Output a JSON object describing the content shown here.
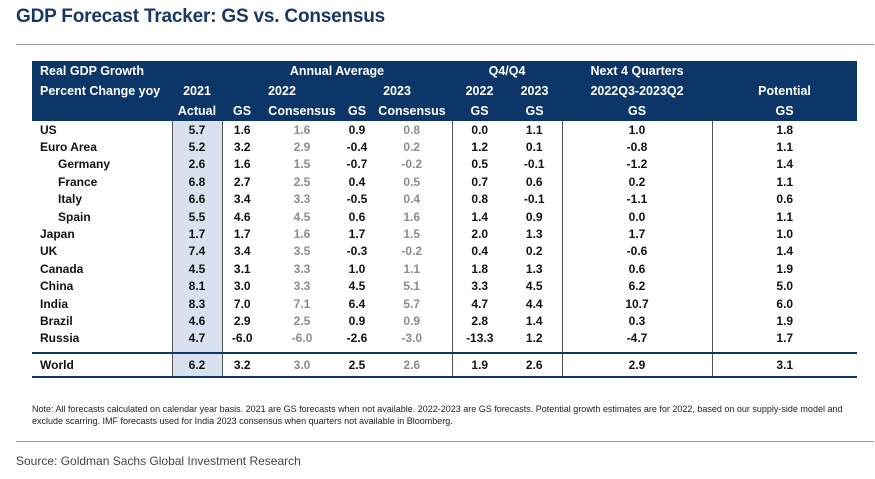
{
  "title": "GDP Forecast Tracker: GS vs. Consensus",
  "header": {
    "real_gdp": "Real GDP Growth",
    "pct_change": "Percent Change yoy",
    "annual_avg": "Annual Average",
    "q4q4": "Q4/Q4",
    "next4q": "Next 4 Quarters",
    "y2021": "2021",
    "y2022": "2022",
    "y2023": "2023",
    "q_2022": "2022",
    "q_2023": "2023",
    "range": "2022Q3-2023Q2",
    "potential": "Potential",
    "actual": "Actual",
    "gs": "GS",
    "consensus": "Consensus"
  },
  "rows": [
    {
      "country": "US",
      "a21": "5.7",
      "gs22": "1.6",
      "con22": "1.6",
      "gs23": "0.9",
      "con23": "0.8",
      "q22": "0.0",
      "q23": "1.1",
      "n4q": "1.0",
      "pot": "1.8"
    },
    {
      "country": "Euro Area",
      "a21": "5.2",
      "gs22": "3.2",
      "con22": "2.9",
      "gs23": "-0.4",
      "con23": "0.2",
      "q22": "1.2",
      "q23": "0.1",
      "n4q": "-0.8",
      "pot": "1.1"
    },
    {
      "country": "Germany",
      "a21": "2.6",
      "gs22": "1.6",
      "con22": "1.5",
      "gs23": "-0.7",
      "con23": "-0.2",
      "q22": "0.5",
      "q23": "-0.1",
      "n4q": "-1.2",
      "pot": "1.4"
    },
    {
      "country": "France",
      "a21": "6.8",
      "gs22": "2.7",
      "con22": "2.5",
      "gs23": "0.4",
      "con23": "0.5",
      "q22": "0.7",
      "q23": "0.6",
      "n4q": "0.2",
      "pot": "1.1"
    },
    {
      "country": "Italy",
      "a21": "6.6",
      "gs22": "3.4",
      "con22": "3.3",
      "gs23": "-0.5",
      "con23": "0.4",
      "q22": "0.8",
      "q23": "-0.1",
      "n4q": "-1.1",
      "pot": "0.6"
    },
    {
      "country": "Spain",
      "a21": "5.5",
      "gs22": "4.6",
      "con22": "4.5",
      "gs23": "0.6",
      "con23": "1.6",
      "q22": "1.4",
      "q23": "0.9",
      "n4q": "0.0",
      "pot": "1.1"
    },
    {
      "country": "Japan",
      "a21": "1.7",
      "gs22": "1.7",
      "con22": "1.6",
      "gs23": "1.7",
      "con23": "1.5",
      "q22": "2.0",
      "q23": "1.3",
      "n4q": "1.7",
      "pot": "1.0"
    },
    {
      "country": "UK",
      "a21": "7.4",
      "gs22": "3.4",
      "con22": "3.5",
      "gs23": "-0.3",
      "con23": "-0.2",
      "q22": "0.4",
      "q23": "0.2",
      "n4q": "-0.6",
      "pot": "1.4"
    },
    {
      "country": "Canada",
      "a21": "4.5",
      "gs22": "3.1",
      "con22": "3.3",
      "gs23": "1.0",
      "con23": "1.1",
      "q22": "1.8",
      "q23": "1.3",
      "n4q": "0.6",
      "pot": "1.9"
    },
    {
      "country": "China",
      "a21": "8.1",
      "gs22": "3.0",
      "con22": "3.3",
      "gs23": "4.5",
      "con23": "5.1",
      "q22": "3.3",
      "q23": "4.5",
      "n4q": "6.2",
      "pot": "5.0"
    },
    {
      "country": "India",
      "a21": "8.3",
      "gs22": "7.0",
      "con22": "7.1",
      "gs23": "6.4",
      "con23": "5.7",
      "q22": "4.7",
      "q23": "4.4",
      "n4q": "10.7",
      "pot": "6.0"
    },
    {
      "country": "Brazil",
      "a21": "4.6",
      "gs22": "2.9",
      "con22": "2.5",
      "gs23": "0.9",
      "con23": "0.9",
      "q22": "2.8",
      "q23": "1.4",
      "n4q": "0.3",
      "pot": "1.9"
    },
    {
      "country": "Russia",
      "a21": "4.7",
      "gs22": "-6.0",
      "con22": "-6.0",
      "gs23": "-2.6",
      "con23": "-3.0",
      "q22": "-13.3",
      "q23": "1.2",
      "n4q": "-4.7",
      "pot": "1.7"
    }
  ],
  "world": {
    "country": "World",
    "a21": "6.2",
    "gs22": "3.2",
    "con22": "3.0",
    "gs23": "2.5",
    "con23": "2.6",
    "q22": "1.9",
    "q23": "2.6",
    "n4q": "2.9",
    "pot": "3.1"
  },
  "note": "Note: All forecasts calculated on calendar year basis. 2021 are GS forecasts when not available. 2022-2023 are GS forecasts. Potential growth estimates are for 2022, based on our supply-side model and exclude scarring. IMF forecasts used for India 2023 consensus when quarters not available in Bloomberg.",
  "source": "Source: Goldman Sachs Global Investment Research",
  "colors": {
    "header_bg": "#0c3568",
    "title": "#1b3665",
    "actual_bg": "#d9e1ee",
    "consensus_text": "#8c8c8c"
  }
}
